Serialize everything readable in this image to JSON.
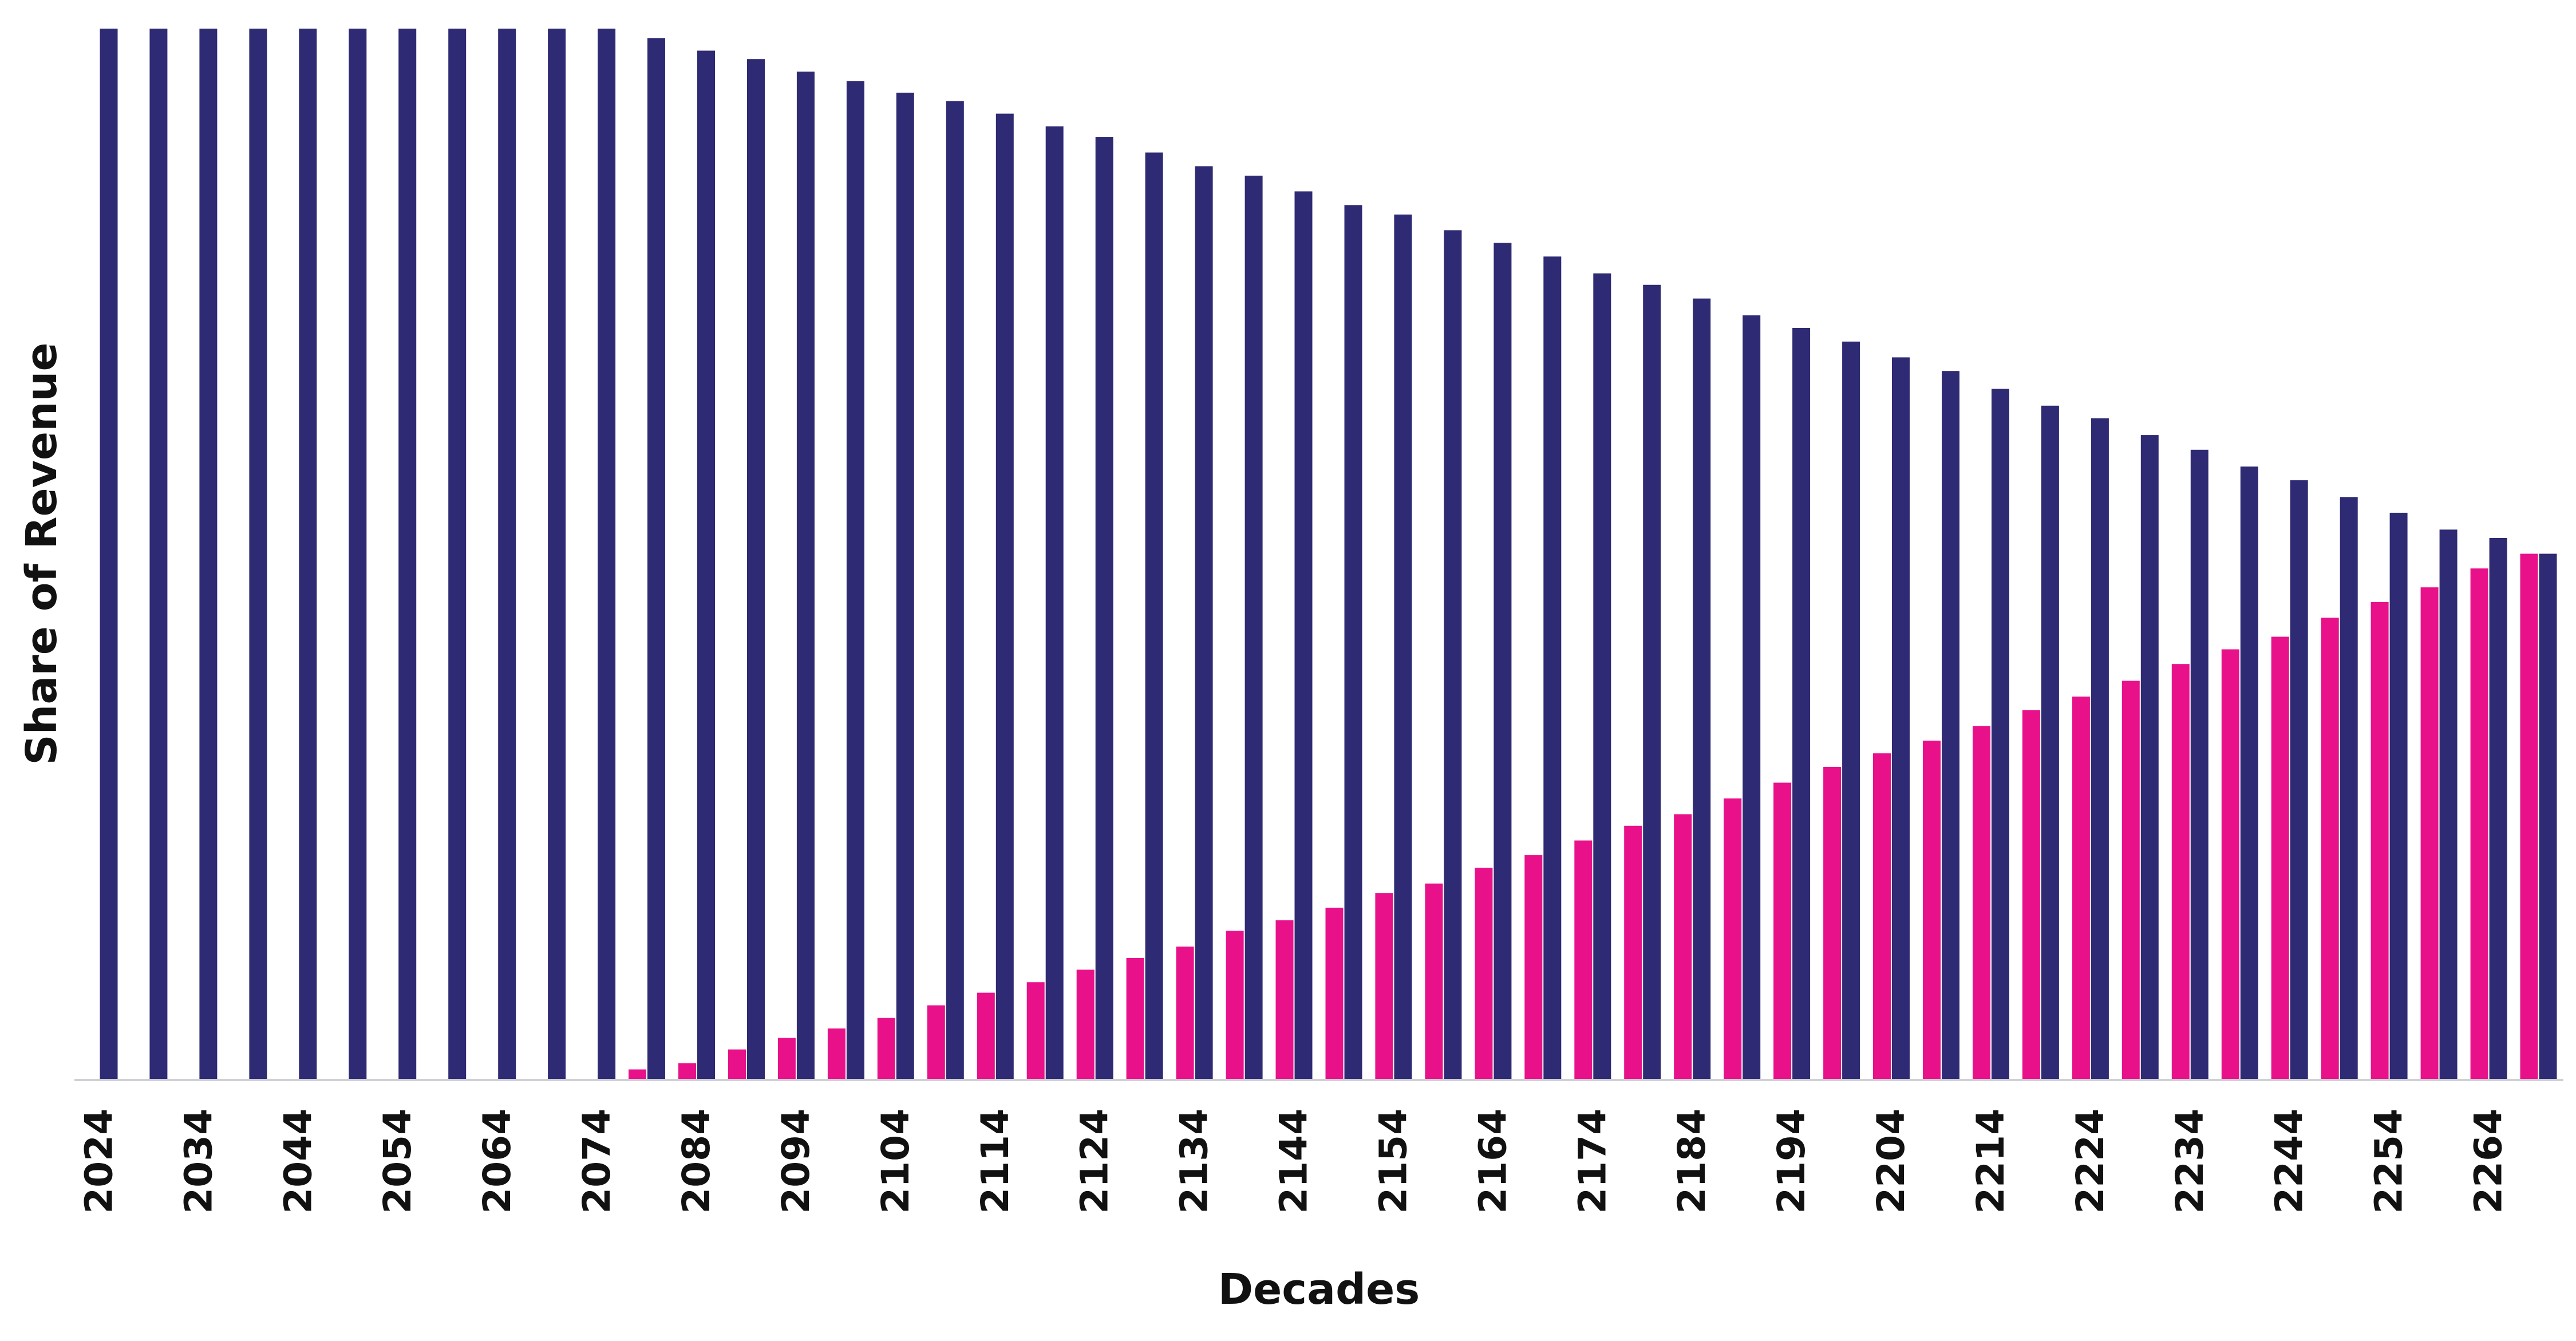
{
  "chart_data": {
    "type": "bar",
    "title": "",
    "xlabel": "Decades",
    "ylabel": "Share of Revenue",
    "ylim": [
      0,
      100
    ],
    "grid": false,
    "legend": "none",
    "categories": [
      "2024",
      "2029",
      "2034",
      "2039",
      "2044",
      "2049",
      "2054",
      "2059",
      "2064",
      "2069",
      "2074",
      "2079",
      "2084",
      "2089",
      "2094",
      "2099",
      "2104",
      "2109",
      "2114",
      "2119",
      "2124",
      "2129",
      "2134",
      "2139",
      "2144",
      "2149",
      "2154",
      "2159",
      "2164",
      "2169",
      "2174",
      "2179",
      "2184",
      "2189",
      "2194",
      "2199",
      "2204",
      "2209",
      "2214",
      "2219",
      "2224",
      "2229",
      "2234",
      "2239",
      "2244",
      "2249",
      "2254",
      "2259",
      "2264",
      "2269"
    ],
    "tick_labels": [
      "2024",
      "2034",
      "2044",
      "2054",
      "2064",
      "2074",
      "2084",
      "2094",
      "2104",
      "2114",
      "2124",
      "2134",
      "2144",
      "2154",
      "2164",
      "2174",
      "2184",
      "2194",
      "2204",
      "2214",
      "2224",
      "2234",
      "2244",
      "2254",
      "2264"
    ],
    "series": [
      {
        "color": "#2e2a73",
        "values": [
          100,
          100,
          100,
          100,
          100,
          100,
          100,
          100,
          100,
          100,
          100,
          99.1,
          97.9,
          97.1,
          95.9,
          95.0,
          93.9,
          93.1,
          91.9,
          90.7,
          89.7,
          88.2,
          86.9,
          86.0,
          84.5,
          83.2,
          82.3,
          80.8,
          79.6,
          78.3,
          76.7,
          75.6,
          74.3,
          72.7,
          71.5,
          70.2,
          68.7,
          67.4,
          65.7,
          64.1,
          62.9,
          61.3,
          59.9,
          58.3,
          57.0,
          55.4,
          53.9,
          52.3,
          51.5,
          50.0
        ]
      },
      {
        "color": "#e8118a",
        "values": [
          0,
          0,
          0,
          0,
          0,
          0,
          0,
          0,
          0,
          0,
          0,
          0.9,
          1.5,
          2.8,
          3.9,
          4.8,
          5.8,
          7.0,
          8.2,
          9.2,
          10.4,
          11.5,
          12.6,
          14.1,
          15.1,
          16.3,
          17.7,
          18.6,
          20.1,
          21.3,
          22.7,
          24.1,
          25.2,
          26.7,
          28.2,
          29.7,
          31.0,
          32.2,
          33.6,
          35.1,
          36.4,
          37.9,
          39.5,
          40.9,
          42.1,
          43.9,
          45.4,
          46.8,
          48.6,
          50.0
        ]
      }
    ]
  }
}
